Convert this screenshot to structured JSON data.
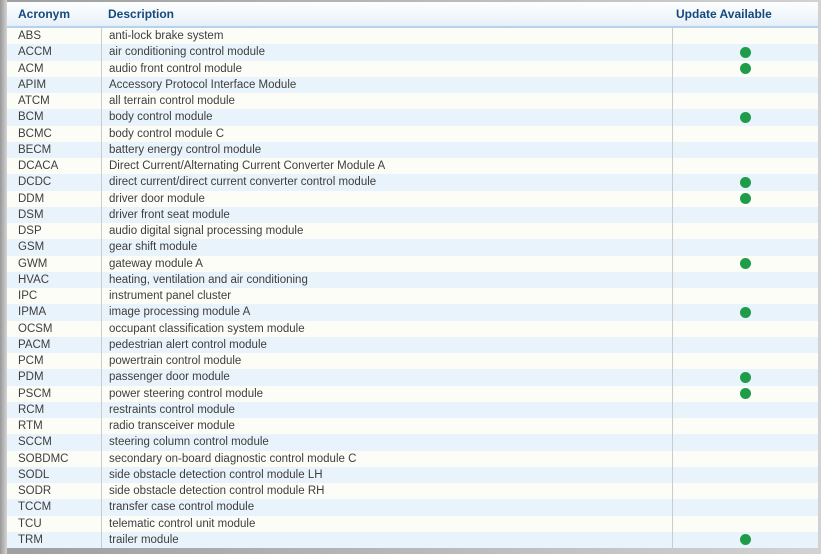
{
  "table": {
    "columns": [
      {
        "label": "Acronym"
      },
      {
        "label": "Description"
      },
      {
        "label": "Update Available"
      }
    ],
    "rows": [
      {
        "acronym": "ABS",
        "description": "anti-lock brake system",
        "update_available": false
      },
      {
        "acronym": "ACCM",
        "description": "air conditioning control module",
        "update_available": true
      },
      {
        "acronym": "ACM",
        "description": "audio front control module",
        "update_available": true
      },
      {
        "acronym": "APIM",
        "description": "Accessory Protocol Interface Module",
        "update_available": false
      },
      {
        "acronym": "ATCM",
        "description": "all terrain control module",
        "update_available": false
      },
      {
        "acronym": "BCM",
        "description": "body control module",
        "update_available": true
      },
      {
        "acronym": "BCMC",
        "description": "body control module C",
        "update_available": false
      },
      {
        "acronym": "BECM",
        "description": "battery energy control module",
        "update_available": false
      },
      {
        "acronym": "DCACA",
        "description": "Direct Current/Alternating Current Converter Module A",
        "update_available": false
      },
      {
        "acronym": "DCDC",
        "description": "direct current/direct current converter control module",
        "update_available": true
      },
      {
        "acronym": "DDM",
        "description": "driver door module",
        "update_available": true
      },
      {
        "acronym": "DSM",
        "description": "driver front seat module",
        "update_available": false
      },
      {
        "acronym": "DSP",
        "description": "audio digital signal processing module",
        "update_available": false
      },
      {
        "acronym": "GSM",
        "description": "gear shift module",
        "update_available": false
      },
      {
        "acronym": "GWM",
        "description": "gateway module A",
        "update_available": true
      },
      {
        "acronym": "HVAC",
        "description": "heating, ventilation and air conditioning",
        "update_available": false
      },
      {
        "acronym": "IPC",
        "description": "instrument panel cluster",
        "update_available": false
      },
      {
        "acronym": "IPMA",
        "description": "image processing module A",
        "update_available": true
      },
      {
        "acronym": "OCSM",
        "description": "occupant classification system module",
        "update_available": false
      },
      {
        "acronym": "PACM",
        "description": "pedestrian alert control module",
        "update_available": false
      },
      {
        "acronym": "PCM",
        "description": "powertrain control module",
        "update_available": false
      },
      {
        "acronym": "PDM",
        "description": "passenger door module",
        "update_available": true
      },
      {
        "acronym": "PSCM",
        "description": "power steering control module",
        "update_available": true
      },
      {
        "acronym": "RCM",
        "description": "restraints control module",
        "update_available": false
      },
      {
        "acronym": "RTM",
        "description": "radio transceiver module",
        "update_available": false
      },
      {
        "acronym": "SCCM",
        "description": "steering column control module",
        "update_available": false
      },
      {
        "acronym": "SOBDMC",
        "description": "secondary on-board diagnostic control module C",
        "update_available": false
      },
      {
        "acronym": "SODL",
        "description": "side obstacle detection control module LH",
        "update_available": false
      },
      {
        "acronym": "SODR",
        "description": "side obstacle detection control module RH",
        "update_available": false
      },
      {
        "acronym": "TCCM",
        "description": "transfer case control module",
        "update_available": false
      },
      {
        "acronym": "TCU",
        "description": "telematic control unit module",
        "update_available": false
      },
      {
        "acronym": "TRM",
        "description": "trailer module",
        "update_available": true
      }
    ]
  },
  "colors": {
    "header_text": "#17487c",
    "header_border": "#b6d2ea",
    "row_text": "#3e3e3e",
    "row_odd_bg": "#fdfdf8",
    "row_even_bg": "#e9f3fb",
    "column_divider": "#cbcbcb",
    "update_dot_green": "#1f9c4a",
    "frame_gray": "#c9c9c9"
  }
}
